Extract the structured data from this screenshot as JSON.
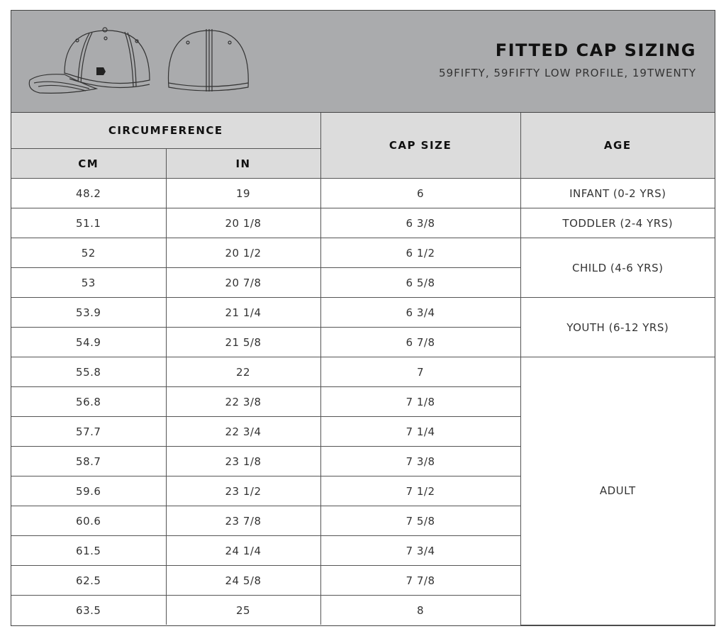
{
  "header": {
    "title": "FITTED CAP SIZING",
    "subtitle": "59FIFTY, 59FIFTY LOW PROFILE, 19TWENTY"
  },
  "columns": {
    "circumference": "CIRCUMFERENCE",
    "cm": "CM",
    "in": "IN",
    "cap_size": "CAP SIZE",
    "age": "AGE"
  },
  "rows": [
    {
      "cm": "48.2",
      "in": "19",
      "size": "6"
    },
    {
      "cm": "51.1",
      "in": "20 1/8",
      "size": "6 3/8"
    },
    {
      "cm": "52",
      "in": "20 1/2",
      "size": "6 1/2"
    },
    {
      "cm": "53",
      "in": "20 7/8",
      "size": "6 5/8"
    },
    {
      "cm": "53.9",
      "in": "21 1/4",
      "size": "6 3/4"
    },
    {
      "cm": "54.9",
      "in": "21 5/8",
      "size": "6 7/8"
    },
    {
      "cm": "55.8",
      "in": "22",
      "size": "7"
    },
    {
      "cm": "56.8",
      "in": "22 3/8",
      "size": "7 1/8"
    },
    {
      "cm": "57.7",
      "in": "22 3/4",
      "size": "7 1/4"
    },
    {
      "cm": "58.7",
      "in": "23 1/8",
      "size": "7 3/8"
    },
    {
      "cm": "59.6",
      "in": "23 1/2",
      "size": "7 1/2"
    },
    {
      "cm": "60.6",
      "in": "23 7/8",
      "size": "7 5/8"
    },
    {
      "cm": "61.5",
      "in": "24 1/4",
      "size": "7 3/4"
    },
    {
      "cm": "62.5",
      "in": "24 5/8",
      "size": "7 7/8"
    },
    {
      "cm": "63.5",
      "in": "25",
      "size": "8"
    }
  ],
  "age_groups": [
    {
      "label": "INFANT (0-2 YRS)",
      "start": 0,
      "span": 1
    },
    {
      "label": "TODDLER (2-4 YRS)",
      "start": 1,
      "span": 1
    },
    {
      "label": "CHILD (4-6 YRS)",
      "start": 2,
      "span": 2
    },
    {
      "label": "YOUTH (6-12 YRS)",
      "start": 4,
      "span": 2
    },
    {
      "label": "ADULT",
      "start": 6,
      "span": 9
    }
  ],
  "colors": {
    "banner": "#aaabad",
    "header_cell": "#dcdcdc"
  }
}
